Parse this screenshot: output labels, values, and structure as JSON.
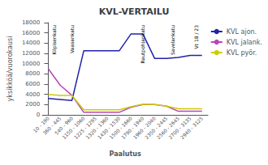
{
  "chart_data": {
    "type": "line",
    "title": "KVL-VERTAILU",
    "x_label": "Paalutus",
    "y_label": "yksikköä/vuorokausi",
    "categories": [
      "10 - 190",
      "360 - 445",
      "540 - 960",
      "1150 - 1060",
      "1225 - 1295",
      "1320 - 1360",
      "1430 - 1530",
      "1500 - 1660",
      "1790 - 1940",
      "1960 - 2040",
      "2350 - 2445",
      "2560 - 2645",
      "2700 - 3135",
      "2940 - 3125"
    ],
    "series": [
      {
        "name": "KVL ajon.",
        "color": "#2222AA",
        "values": [
          3200,
          3000,
          2800,
          12500,
          12500,
          12500,
          12500,
          15800,
          15800,
          11000,
          11000,
          11200,
          11600,
          11600
        ]
      },
      {
        "name": "KVL jalank.",
        "color": "#BB44BB",
        "values": [
          9000,
          5800,
          3800,
          500,
          500,
          500,
          500,
          1500,
          2000,
          2000,
          1700,
          700,
          700,
          700
        ]
      },
      {
        "name": "KVL pyör.",
        "color": "#CCCC00",
        "values": [
          4000,
          3800,
          3800,
          1000,
          1000,
          1000,
          1000,
          1600,
          2100,
          2000,
          1700,
          1200,
          1200,
          1200
        ]
      }
    ],
    "ylim": [
      0,
      18000
    ],
    "yticks": [
      0,
      2000,
      4000,
      6000,
      8000,
      10000,
      12000,
      14000,
      16000,
      18000
    ],
    "annotations": [
      {
        "text": "Kilpisenkatu",
        "x": 0.5
      },
      {
        "text": "Vaasankatu",
        "x": 2.0
      },
      {
        "text": "Rautpohjankatu",
        "x": 8.0
      },
      {
        "text": "Savelankatu",
        "x": 10.5
      },
      {
        "text": "Vt 18 / 23",
        "x": 12.5
      }
    ],
    "grid": false,
    "legend": "right"
  }
}
